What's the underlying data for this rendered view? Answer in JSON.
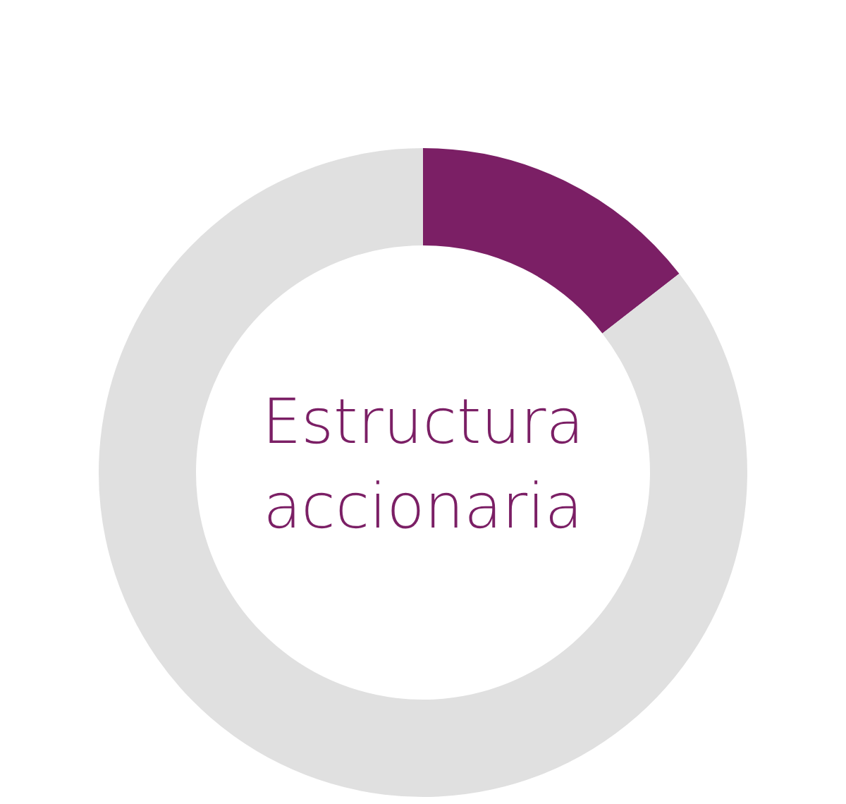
{
  "chart_data": {
    "type": "donut",
    "title": "Estructura accionaria",
    "categories": [
      null,
      null
    ],
    "values": [
      14.5,
      85.5
    ],
    "colors": [
      "#7b1f65",
      "#e0e0e0"
    ],
    "legend": false
  }
}
